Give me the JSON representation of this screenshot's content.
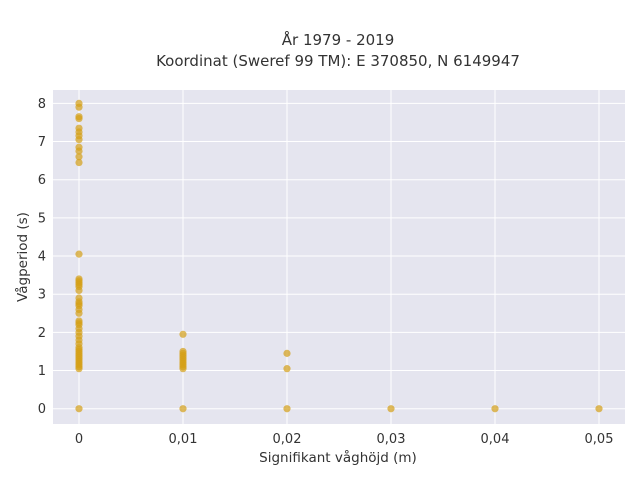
{
  "chart_data": {
    "type": "scatter",
    "title": "År 1979 - 2019",
    "subtitle": "Koordinat (Sweref 99 TM): E 370850, N 6149947",
    "xlabel": "Signifikant våghöjd (m)",
    "ylabel": "Vågperiod (s)",
    "xlim": [
      -0.0025,
      0.0525
    ],
    "ylim": [
      -0.4,
      8.35
    ],
    "x_ticks": [
      0,
      0.01,
      0.02,
      0.03,
      0.04,
      0.05
    ],
    "x_tick_labels": [
      "0",
      "0,01",
      "0,02",
      "0,03",
      "0,04",
      "0,05"
    ],
    "y_ticks": [
      0,
      1,
      2,
      3,
      4,
      5,
      6,
      7,
      8
    ],
    "y_tick_labels": [
      "0",
      "1",
      "2",
      "3",
      "4",
      "5",
      "6",
      "7",
      "8"
    ],
    "grid": true,
    "background": "#e5e5ef",
    "marker_color": "#d4a017",
    "series": [
      {
        "points": [
          [
            0,
            0
          ],
          [
            0,
            1.05
          ],
          [
            0,
            1.1
          ],
          [
            0,
            1.15
          ],
          [
            0,
            1.2
          ],
          [
            0,
            1.25
          ],
          [
            0,
            1.3
          ],
          [
            0,
            1.35
          ],
          [
            0,
            1.4
          ],
          [
            0,
            1.45
          ],
          [
            0,
            1.5
          ],
          [
            0,
            1.55
          ],
          [
            0,
            1.6
          ],
          [
            0,
            1.7
          ],
          [
            0,
            1.8
          ],
          [
            0,
            1.9
          ],
          [
            0,
            2.0
          ],
          [
            0,
            2.1
          ],
          [
            0,
            2.2
          ],
          [
            0,
            2.25
          ],
          [
            0,
            2.3
          ],
          [
            0,
            2.5
          ],
          [
            0,
            2.6
          ],
          [
            0,
            2.7
          ],
          [
            0,
            2.75
          ],
          [
            0,
            2.8
          ],
          [
            0,
            2.9
          ],
          [
            0,
            3.1
          ],
          [
            0,
            3.2
          ],
          [
            0,
            3.25
          ],
          [
            0,
            3.3
          ],
          [
            0,
            3.35
          ],
          [
            0,
            3.4
          ],
          [
            0,
            4.05
          ],
          [
            0,
            6.45
          ],
          [
            0,
            6.6
          ],
          [
            0,
            6.75
          ],
          [
            0,
            6.85
          ],
          [
            0,
            7.05
          ],
          [
            0,
            7.15
          ],
          [
            0,
            7.25
          ],
          [
            0,
            7.35
          ],
          [
            0,
            7.6
          ],
          [
            0,
            7.65
          ],
          [
            0,
            7.9
          ],
          [
            0,
            8.0
          ],
          [
            0.01,
            0
          ],
          [
            0.01,
            1.05
          ],
          [
            0.01,
            1.1
          ],
          [
            0.01,
            1.15
          ],
          [
            0.01,
            1.2
          ],
          [
            0.01,
            1.25
          ],
          [
            0.01,
            1.3
          ],
          [
            0.01,
            1.35
          ],
          [
            0.01,
            1.4
          ],
          [
            0.01,
            1.45
          ],
          [
            0.01,
            1.5
          ],
          [
            0.01,
            1.95
          ],
          [
            0.02,
            0
          ],
          [
            0.02,
            1.05
          ],
          [
            0.02,
            1.45
          ],
          [
            0.03,
            0
          ],
          [
            0.04,
            0
          ],
          [
            0.05,
            0
          ]
        ]
      }
    ]
  }
}
